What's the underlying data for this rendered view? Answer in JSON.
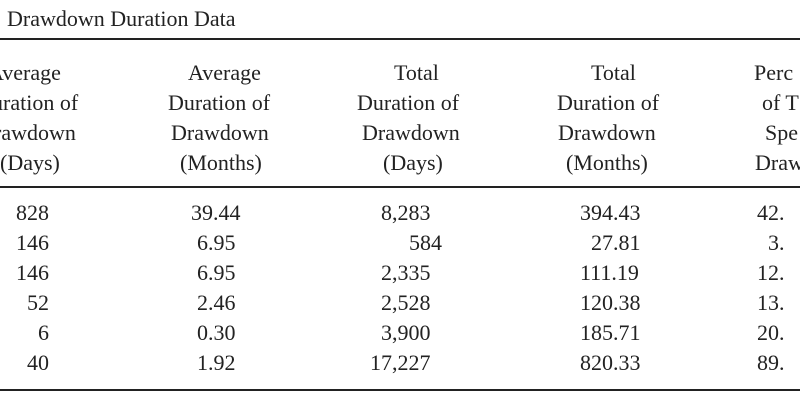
{
  "table": {
    "caption": "Drawdown Duration Data",
    "columns": [
      {
        "header": [
          "Average",
          "uration of",
          "rawdown",
          "(Days)"
        ]
      },
      {
        "header": [
          "Average",
          "Duration of",
          "Drawdown",
          "(Months)"
        ]
      },
      {
        "header": [
          "Total",
          "Duration of",
          "Drawdown",
          "(Days)"
        ]
      },
      {
        "header": [
          "Total",
          "Duration of",
          "Drawdown",
          "(Months)"
        ]
      },
      {
        "header": [
          "Perc",
          "of T",
          "Spe",
          "Draw"
        ]
      }
    ],
    "rows": [
      [
        "828",
        "39.44",
        "8,283",
        "394.43",
        "42."
      ],
      [
        "146",
        "6.95",
        "584",
        "27.81",
        "3."
      ],
      [
        "146",
        "6.95",
        "2,335",
        "111.19",
        "12."
      ],
      [
        "52",
        "2.46",
        "2,528",
        "120.38",
        "13."
      ],
      [
        "6",
        "0.30",
        "3,900",
        "185.71",
        "20."
      ],
      [
        "40",
        "1.92",
        "17,227",
        "820.33",
        "89."
      ]
    ]
  }
}
